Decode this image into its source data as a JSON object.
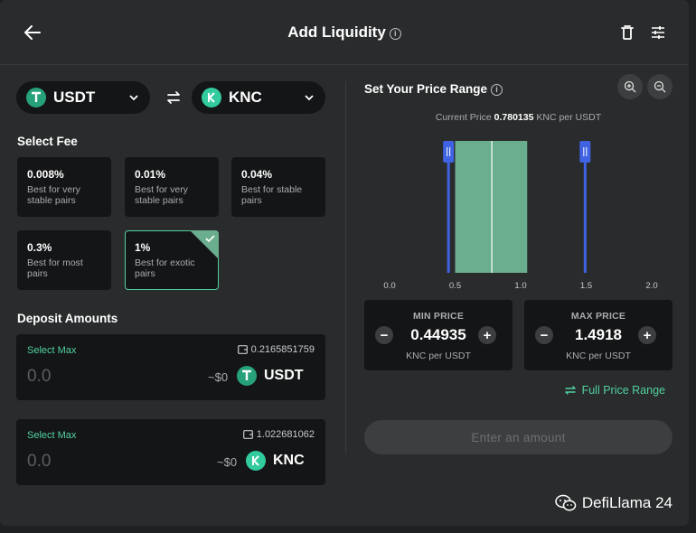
{
  "header": {
    "title": "Add Liquidity",
    "info_glyph": "i",
    "back_icon": "arrow-left-icon",
    "delete_icon": "trash-icon",
    "settings_icon": "sliders-icon"
  },
  "tokens": {
    "token_a": {
      "symbol": "USDT",
      "logo_color": "#26a17b"
    },
    "token_b": {
      "symbol": "KNC",
      "logo_color": "#31cb9e"
    }
  },
  "fee": {
    "label": "Select Fee",
    "options": [
      {
        "pct": "0.008%",
        "desc": "Best for very stable pairs",
        "selected": false
      },
      {
        "pct": "0.01%",
        "desc": "Best for very stable pairs",
        "selected": false
      },
      {
        "pct": "0.04%",
        "desc": "Best for stable pairs",
        "selected": false
      },
      {
        "pct": "0.3%",
        "desc": "Best for most pairs",
        "selected": false
      },
      {
        "pct": "1%",
        "desc": "Best for exotic pairs",
        "selected": true
      }
    ]
  },
  "deposit": {
    "label": "Deposit Amounts",
    "items": [
      {
        "select_max": "Select Max",
        "balance": "0.2165851759",
        "placeholder": "0.0",
        "usd": "~$0",
        "symbol": "USDT"
      },
      {
        "select_max": "Select Max",
        "balance": "1.022681062",
        "placeholder": "0.0",
        "usd": "~$0",
        "symbol": "KNC"
      }
    ]
  },
  "price_range": {
    "title": "Set Your Price Range",
    "info_glyph": "i",
    "current_price_label": "Current Price",
    "current_price_value": "0.780135",
    "current_price_unit": "KNC per USDT",
    "zoom_in_icon": "zoom-in-icon",
    "zoom_out_icon": "zoom-out-icon"
  },
  "chart_data": {
    "type": "area",
    "x_ticks": [
      "0.0",
      "0.5",
      "1.0",
      "1.5",
      "2.0"
    ],
    "xlim": [
      0.0,
      2.0
    ],
    "liquidity_band": [
      0.5,
      1.05
    ],
    "current_price": 0.780135,
    "min_handle": 0.44935,
    "max_handle": 1.4918,
    "colors": {
      "band": "#6aae8f",
      "handle": "#3f63e3",
      "current": "#ffffff"
    }
  },
  "min_price": {
    "label": "MIN PRICE",
    "value": "0.44935",
    "unit": "KNC per USDT",
    "minus": "−",
    "plus": "+"
  },
  "max_price": {
    "label": "MAX PRICE",
    "value": "1.4918",
    "unit": "KNC per USDT",
    "minus": "−",
    "plus": "+"
  },
  "full_range": {
    "label": "Full Price Range"
  },
  "submit": {
    "label": "Enter an amount"
  },
  "watermark": {
    "text": "DefiLlama 24"
  },
  "colors": {
    "accent": "#50d2a0",
    "background": "#2a2b2c",
    "panel": "#141516"
  }
}
